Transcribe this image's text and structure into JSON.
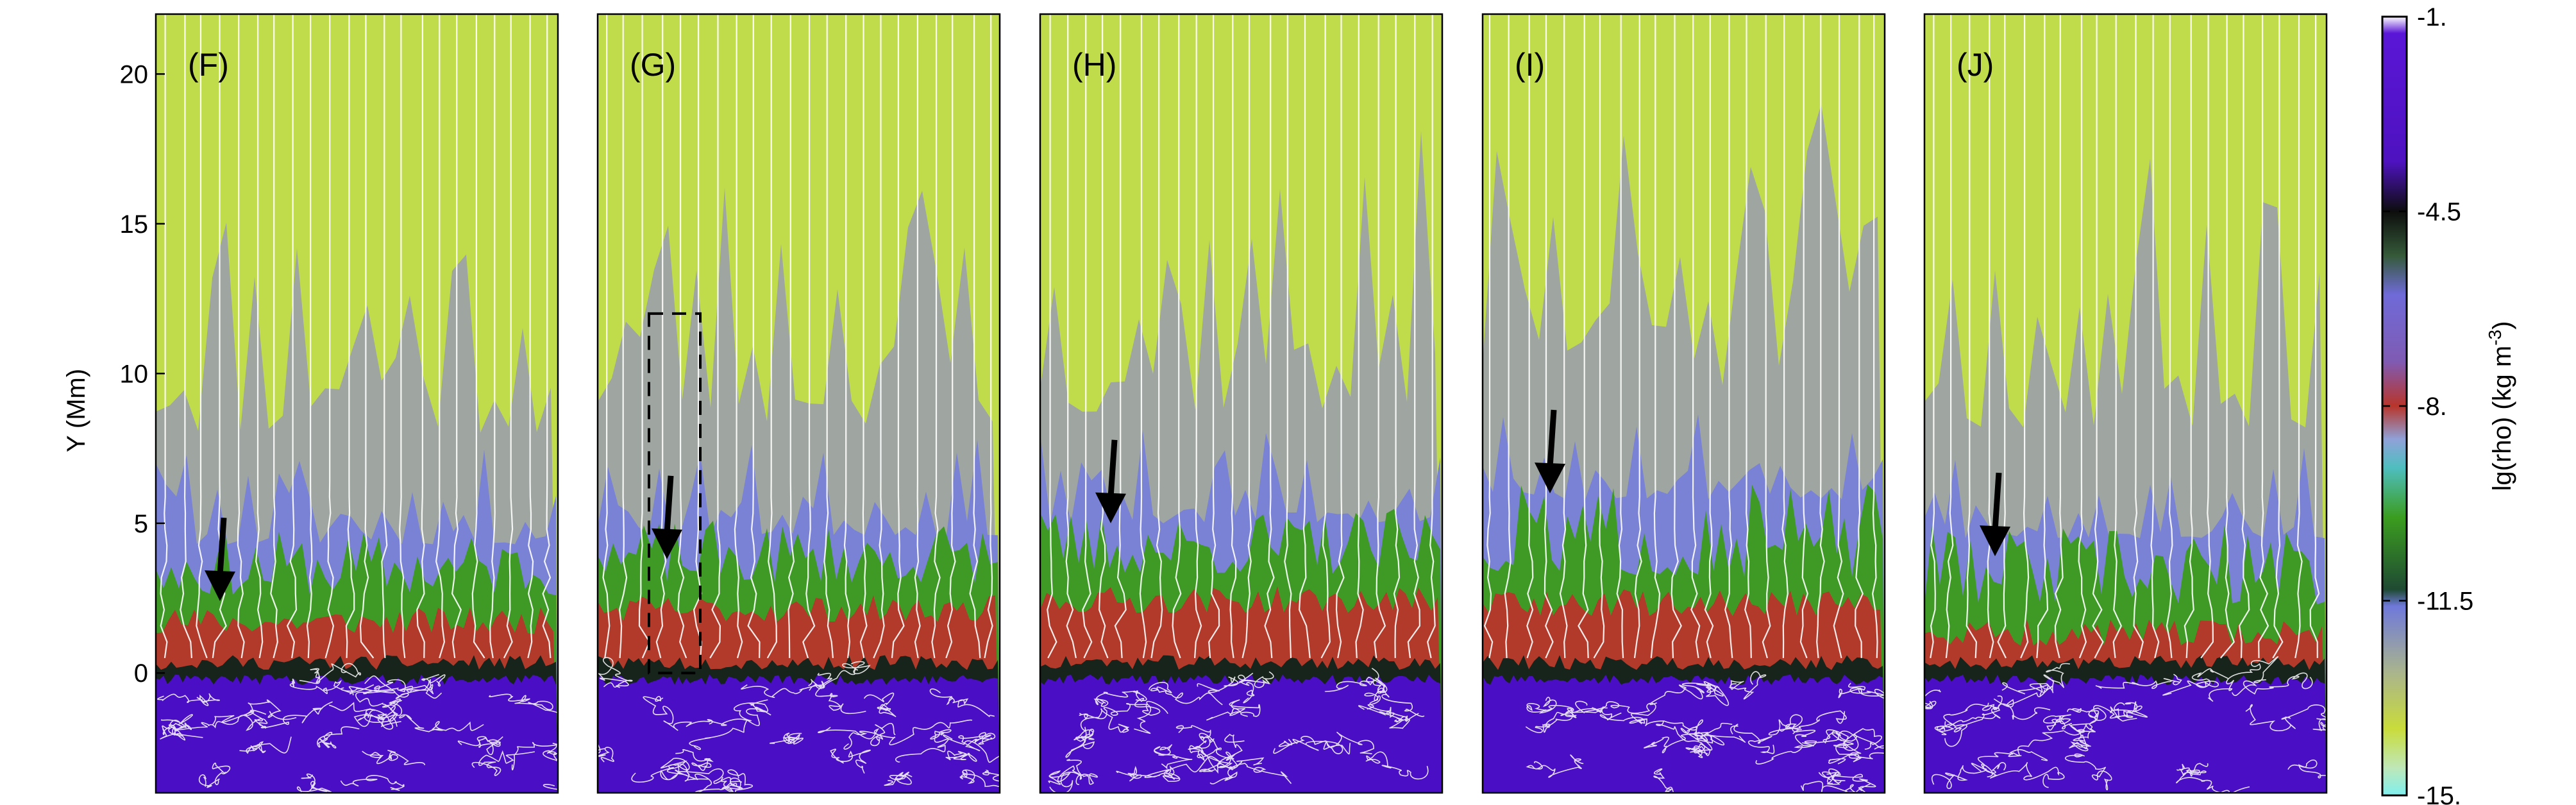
{
  "chart_data": {
    "type": "heatmap",
    "panels": [
      {
        "label": "(F)",
        "arrow_tip_y": 2.4,
        "green_top": 4.0,
        "red_top": 1.6,
        "seed": 11,
        "box": null
      },
      {
        "label": "(G)",
        "arrow_tip_y": 3.8,
        "green_top": 4.3,
        "red_top": 2.0,
        "seed": 23,
        "box": {
          "y_range": [
            0,
            12
          ]
        }
      },
      {
        "label": "(H)",
        "arrow_tip_y": 5.0,
        "green_top": 4.7,
        "red_top": 2.3,
        "seed": 37,
        "box": null
      },
      {
        "label": "(I)",
        "arrow_tip_y": 6.0,
        "green_top": 5.5,
        "red_top": 2.2,
        "seed": 51,
        "box": null
      },
      {
        "label": "(J)",
        "arrow_tip_y": 3.9,
        "green_top": 4.2,
        "red_top": 1.2,
        "seed": 67,
        "box": null
      }
    ],
    "y_axis": {
      "label": "Y (Mm)",
      "range": [
        -4,
        22
      ],
      "ticks": [
        0,
        5,
        10,
        15,
        20
      ],
      "tick_labels": [
        "0",
        "5",
        "10",
        "15",
        "20"
      ]
    },
    "colorbar": {
      "label": "lg(rho) (kg m",
      "label_sup": "-3",
      "label_close": ")",
      "range": [
        -15,
        -1
      ],
      "ticks": [
        -1,
        -4.5,
        -8,
        -11.5,
        -15
      ],
      "tick_labels": [
        "-1.",
        "-4.5",
        "-8.",
        "-11.5",
        "-15."
      ],
      "stops": [
        {
          "v": -1.0,
          "c": "#ffffff"
        },
        {
          "v": -1.3,
          "c": "#5a16d6"
        },
        {
          "v": -3.6,
          "c": "#4e12c0"
        },
        {
          "v": -4.5,
          "c": "#0d0d0d"
        },
        {
          "v": -5.3,
          "c": "#355a39"
        },
        {
          "v": -6.0,
          "c": "#6f6ad8"
        },
        {
          "v": -7.2,
          "c": "#7f5bb3"
        },
        {
          "v": -8.0,
          "c": "#b8352a"
        },
        {
          "v": -8.6,
          "c": "#8fa2d9"
        },
        {
          "v": -9.1,
          "c": "#4fbec0"
        },
        {
          "v": -10.0,
          "c": "#3b9d1f"
        },
        {
          "v": -11.3,
          "c": "#1f4a33"
        },
        {
          "v": -11.6,
          "c": "#6f79da"
        },
        {
          "v": -12.8,
          "c": "#aab58c"
        },
        {
          "v": -13.8,
          "c": "#c9dc3a"
        },
        {
          "v": -14.5,
          "c": "#bfe7b7"
        },
        {
          "v": -15.0,
          "c": "#7ff0ee"
        }
      ]
    },
    "field_lines": true,
    "colors": {
      "dense": "#4a0fc4",
      "chromosphere_dark": "#17241c",
      "red_layer": "#b23a2b",
      "green_layer": "#3f9a25",
      "blue_layer": "#7a82d6",
      "grey_layer": "#9fa6a1",
      "corona": "#c1dc4a",
      "lines": "#ffffff",
      "arrow": "#000000"
    }
  }
}
